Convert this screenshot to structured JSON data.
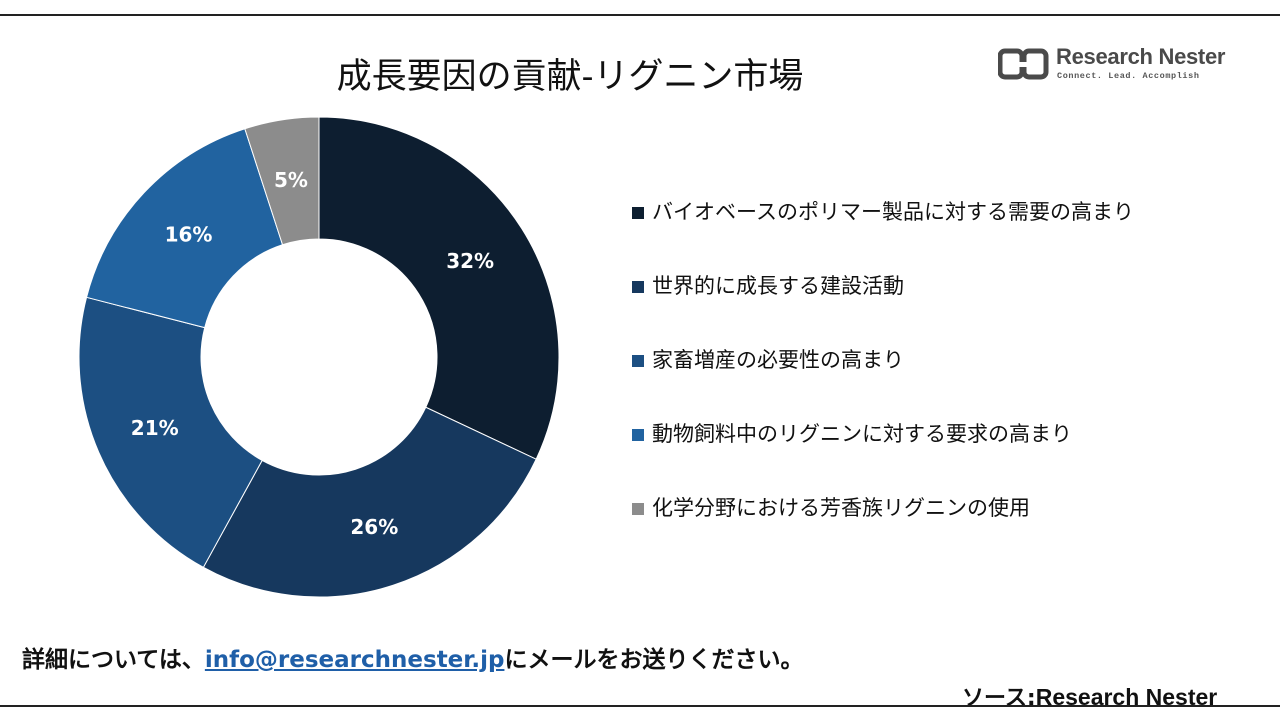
{
  "title": "成長要因の貢献-リグニン市場",
  "logo": {
    "name": "Research Nester",
    "tagline": "Connect. Lead. Accomplish"
  },
  "chart_data": {
    "type": "pie",
    "variant": "donut",
    "title": "成長要因の貢献-リグニン市場",
    "categories": [
      "バイオベースのポリマー製品に対する需要の高まり",
      "世界的に成長する建設活動",
      "家畜増産の必要性の高まり",
      "動物飼料中のリグニンに対する要求の高まり",
      "化学分野における芳香族リグニンの使用"
    ],
    "values": [
      32,
      26,
      21,
      16,
      5
    ],
    "labels": [
      "32%",
      "26%",
      "21%",
      "16%",
      "5%"
    ],
    "colors": [
      "#0d1e30",
      "#16385e",
      "#1c4f82",
      "#2163a0",
      "#8c8c8c"
    ],
    "legend_position": "right",
    "start_angle_deg": 0,
    "direction": "clockwise"
  },
  "footer": {
    "prefix": "詳細については、",
    "email": "info@researchnester.jp",
    "suffix": "にメールをお送りください。"
  },
  "source": {
    "label": "ソース:",
    "name": "Research Nester"
  }
}
